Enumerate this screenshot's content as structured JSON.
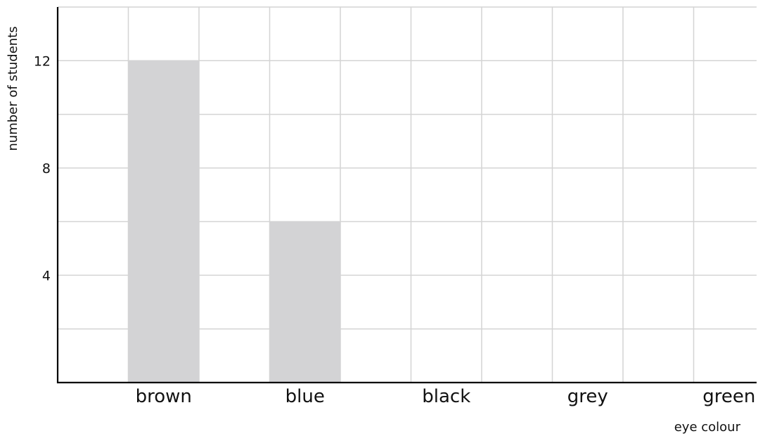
{
  "chart_data": {
    "type": "bar",
    "categories": [
      "brown",
      "blue",
      "black",
      "grey",
      "green"
    ],
    "values": [
      12,
      6,
      null,
      null,
      null
    ],
    "title": "",
    "xlabel": "eye colour",
    "ylabel": "number of students",
    "ylim": [
      0,
      14
    ],
    "yticks": [
      4,
      8,
      12
    ],
    "grid": true,
    "bar_color": "#d3d3d5",
    "grid_color": "#d4d4d4",
    "axis_color": "#000000"
  }
}
